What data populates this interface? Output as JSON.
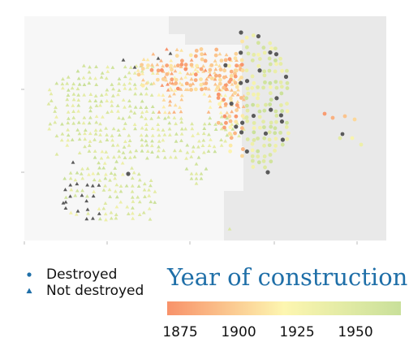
{
  "legend": {
    "destroyed_label": "Destroyed",
    "not_destroyed_label": "Not destroyed"
  },
  "colorbar": {
    "title": "Year of construction",
    "ticks": [
      {
        "label": "1875",
        "value": 1875
      },
      {
        "label": "1900",
        "value": 1900
      },
      {
        "label": "1925",
        "value": 1925
      },
      {
        "label": "1950",
        "value": 1950
      }
    ],
    "range": [
      1866,
      1968
    ],
    "colors": {
      "start": "#f8926a",
      "mid": "#fdf6b0",
      "end": "#c9e09a"
    }
  },
  "colors": {
    "destroyed": "#5a5a5a",
    "panel_light": "#f7f7f7",
    "panel_dark": "#e9e9e9",
    "legend_symbol": "#1f6fa8"
  }
}
